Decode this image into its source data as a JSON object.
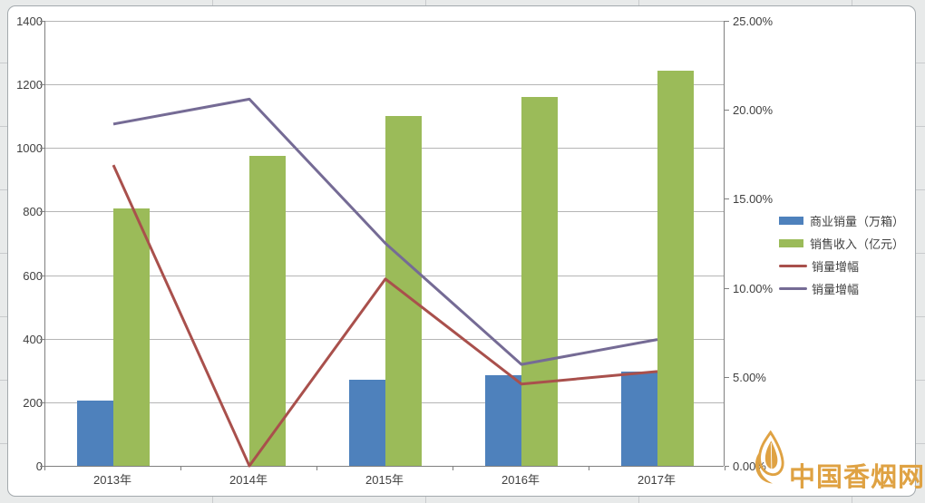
{
  "watermark": {
    "text": "中国香烟网",
    "color": "#dfa243"
  },
  "chart_data": {
    "type": "bar+line combo",
    "title": "",
    "categories": [
      "2013年",
      "2014年",
      "2015年",
      "2016年",
      "2017年"
    ],
    "series": [
      {
        "name": "商业销量（万箱）",
        "type": "bar",
        "axis": "left",
        "color": "#4e81bc",
        "values": [
          205,
          0,
          270,
          285,
          297
        ]
      },
      {
        "name": "销售收入（亿元）",
        "type": "bar",
        "axis": "left",
        "color": "#9bbb59",
        "values": [
          810,
          975,
          1100,
          1160,
          1243
        ]
      },
      {
        "name": "销量增幅",
        "type": "line",
        "axis": "right",
        "color": "#a9504c",
        "values": [
          16.9,
          0.0,
          10.5,
          4.6,
          5.3
        ]
      },
      {
        "name": "销量增幅",
        "type": "line",
        "axis": "right",
        "color": "#756b95",
        "values": [
          19.2,
          20.6,
          12.5,
          5.7,
          7.1
        ]
      }
    ],
    "left_axis": {
      "min": 0,
      "max": 1400,
      "step": 200,
      "ticks": [
        "1400",
        "1200",
        "1000",
        "800",
        "600",
        "400",
        "200",
        "0"
      ]
    },
    "right_axis": {
      "min": 0,
      "max": 25,
      "step": 5,
      "ticks": [
        "25.00%",
        "20.00%",
        "15.00%",
        "10.00%",
        "5.00%",
        "0.00%"
      ]
    },
    "grid": true,
    "legend_position": "right"
  }
}
